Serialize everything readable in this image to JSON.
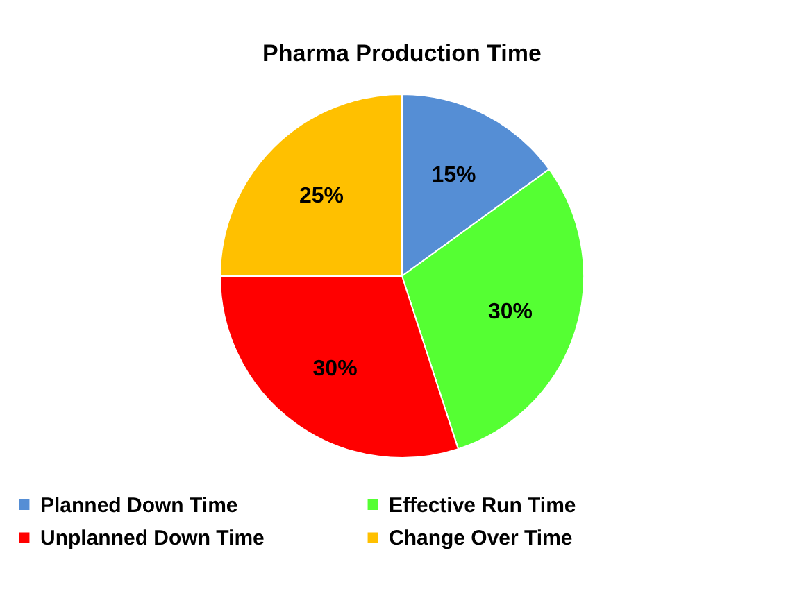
{
  "chart_data": {
    "type": "pie",
    "title": "Pharma Production Time",
    "categories": [
      "Planned Down Time",
      "Effective Run Time",
      "Unplanned Down Time",
      "Change Over Time"
    ],
    "values": [
      15,
      30,
      30,
      25
    ],
    "colors": [
      "#558ed5",
      "#55ff33",
      "#ff0000",
      "#ffc000"
    ],
    "value_labels": [
      "15%",
      "30%",
      "30%",
      "25%"
    ],
    "legend": "bottom"
  }
}
